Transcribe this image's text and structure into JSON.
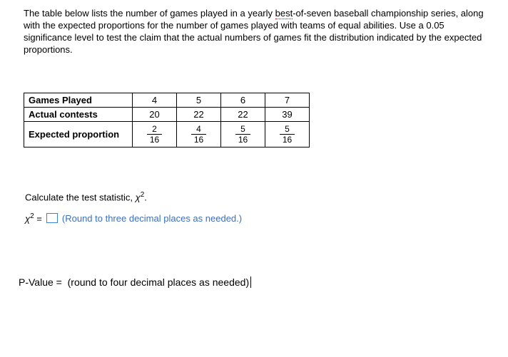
{
  "intro": {
    "pre": "The table below lists the number of games played in a yearly ",
    "underlined": "best",
    "post": "-of-seven baseball championship\n series, along with the expected proportions for the number of games played with teams of equal abilities. Use a 0.05 significance level to test the claim that the actual numbers of games fit the distribution indicated by the expected proportions."
  },
  "table": {
    "row1_label": "Games Played",
    "row1": [
      "4",
      "5",
      "6",
      "7"
    ],
    "row2_label": "Actual contests",
    "row2": [
      "20",
      "22",
      "22",
      "39"
    ],
    "row3_label": "Expected proportion",
    "row3": [
      {
        "n": "2",
        "d": "16"
      },
      {
        "n": "4",
        "d": "16"
      },
      {
        "n": "5",
        "d": "16"
      },
      {
        "n": "5",
        "d": "16"
      }
    ]
  },
  "calc": {
    "line1_pre": "Calculate the test statistic, ",
    "chi": "χ",
    "two": "2",
    "period": ".",
    "eq": " = ",
    "round_note": "(Round to three decimal places as needed.)"
  },
  "pvalue": {
    "label": "P-Value =  ",
    "note": "(round to four decimal places as needed)"
  }
}
